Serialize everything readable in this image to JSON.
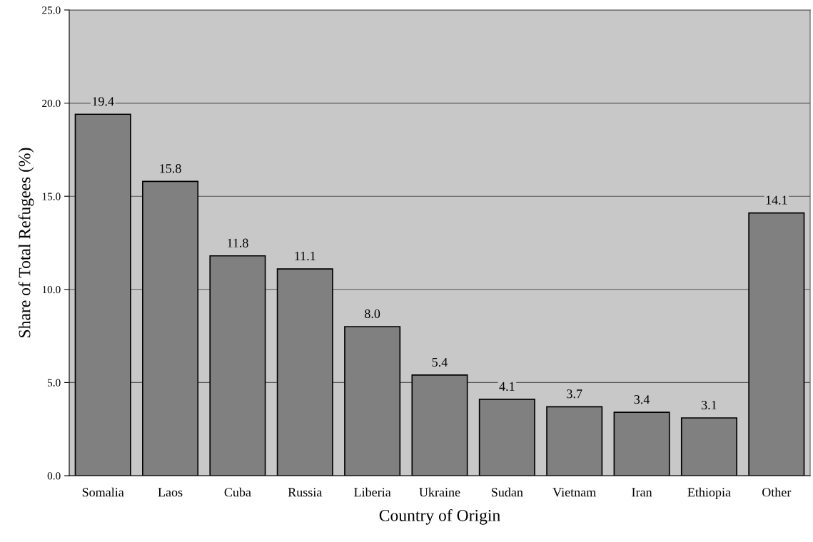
{
  "chart_data": {
    "type": "bar",
    "xlabel": "Country of Origin",
    "ylabel": "Share of Total Refugees (%)",
    "categories": [
      "Somalia",
      "Laos",
      "Cuba",
      "Russia",
      "Liberia",
      "Ukraine",
      "Sudan",
      "Vietnam",
      "Iran",
      "Ethiopia",
      "Other"
    ],
    "values": [
      19.4,
      15.8,
      11.8,
      11.1,
      8.0,
      5.4,
      4.1,
      3.7,
      3.4,
      3.1,
      14.1
    ],
    "value_labels": [
      "19.4",
      "15.8",
      "11.8",
      "11.1",
      "8.0",
      "5.4",
      "4.1",
      "3.7",
      "3.4",
      "3.1",
      "14.1"
    ],
    "color": "#808080",
    "ylim": [
      0,
      25
    ],
    "yticks": [
      {
        "value": 0,
        "label": "0.0"
      },
      {
        "value": 5,
        "label": "5.0"
      },
      {
        "value": 10,
        "label": "10.0"
      },
      {
        "value": 15,
        "label": "15.0"
      },
      {
        "value": 20,
        "label": "20.0"
      },
      {
        "value": 25,
        "label": "25.0"
      }
    ],
    "grid": "y"
  }
}
